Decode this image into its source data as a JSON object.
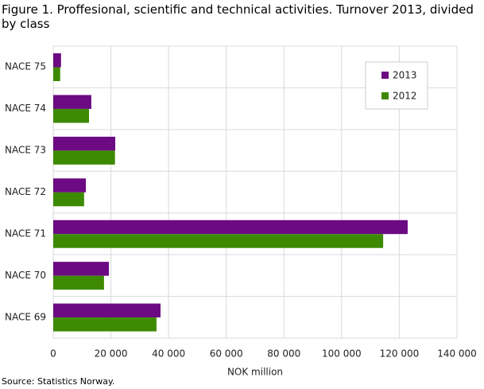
{
  "chart_data": {
    "type": "hbar",
    "title": "Figure 1. Proffesional, scientific and technical activities. Turnover 2013, divided by class",
    "source": "Source: Statistics Norway.",
    "xlabel": "NOK million",
    "categories": [
      "NACE 75",
      "NACE 74",
      "NACE 73",
      "NACE 72",
      "NACE 71",
      "NACE 70",
      "NACE 69"
    ],
    "series": [
      {
        "name": "2013",
        "color": "#6b0a82",
        "values": [
          2700,
          13200,
          21500,
          11300,
          122900,
          19300,
          37200
        ]
      },
      {
        "name": "2012",
        "color": "#3d8a00",
        "values": [
          2400,
          12400,
          21400,
          10700,
          114400,
          17600,
          35800
        ]
      }
    ],
    "xlim": [
      0,
      140000
    ],
    "xticks": [
      0,
      {
        "value": 20000,
        "label": "20 000"
      },
      {
        "value": 40000,
        "label": "40 000"
      },
      {
        "value": 60000,
        "label": "60 000"
      },
      {
        "value": 80000,
        "label": "80 000"
      },
      {
        "value": 100000,
        "label": "100 000"
      },
      {
        "value": 120000,
        "label": "120 000"
      },
      {
        "value": 140000,
        "label": "140 000"
      }
    ],
    "grid": true,
    "legend": "top-right"
  }
}
